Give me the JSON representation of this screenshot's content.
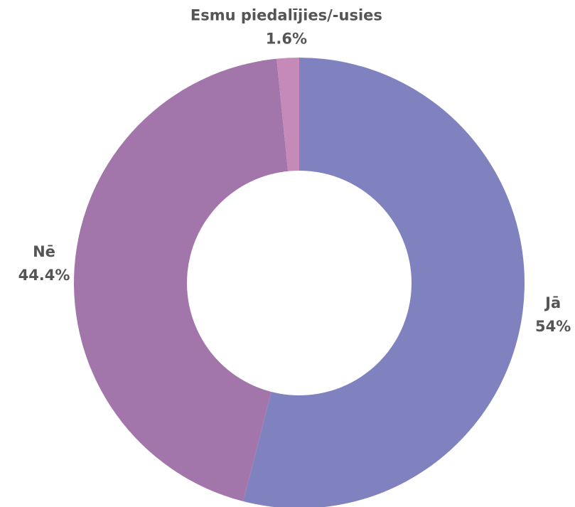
{
  "chart_data": {
    "type": "donut",
    "categories": [
      "Jā",
      "Nē",
      "Esmu piedalījies/-usies"
    ],
    "values": [
      54,
      44.4,
      1.6
    ],
    "value_labels": [
      "54%",
      "44.4%",
      "1.6%"
    ],
    "colors": [
      "#7f82bf",
      "#a376ab",
      "#c68ab8"
    ]
  }
}
